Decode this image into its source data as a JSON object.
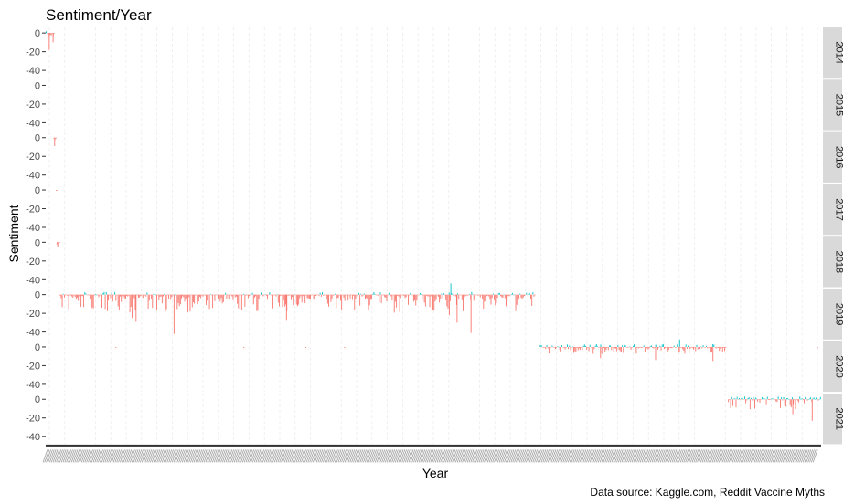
{
  "chart_data": {
    "type": "bar",
    "title": "Sentiment/Year",
    "xlabel": "Year",
    "ylabel": "Sentiment",
    "caption": "Data source: Kaggle.com, Reddit Vaccine Myths",
    "facet_by": "year",
    "ylim": [
      -48,
      6
    ],
    "y_ticks": [
      0,
      -20,
      -40
    ],
    "x_tick_labels_legible": false,
    "grid": "vertical dashed minor gridlines, no horizontal gridlines",
    "legend": "none",
    "colors": {
      "negative": "#f8766d",
      "positive": "#00bfc4",
      "strip": "#d9d9d9",
      "xaxis_ticks": "#333333"
    },
    "panels": [
      {
        "label": "2014",
        "segments": [
          {
            "x_start": 0.0,
            "x_end": 0.012,
            "min": -18,
            "max": 2,
            "positive_share": 0.1
          }
        ],
        "notable_values": [
          {
            "x": 0.004,
            "value": -18
          },
          {
            "x": 0.009,
            "value": -10
          }
        ]
      },
      {
        "label": "2015",
        "segments": [],
        "notable_values": []
      },
      {
        "label": "2016",
        "segments": [
          {
            "x_start": 0.01,
            "x_end": 0.014,
            "min": -9,
            "max": 0,
            "positive_share": 0
          }
        ],
        "notable_values": [
          {
            "x": 0.011,
            "value": -9
          }
        ]
      },
      {
        "label": "2017",
        "segments": [
          {
            "x_start": 0.013,
            "x_end": 0.015,
            "min": -2,
            "max": 1,
            "positive_share": 0
          }
        ],
        "notable_values": []
      },
      {
        "label": "2018",
        "segments": [
          {
            "x_start": 0.014,
            "x_end": 0.019,
            "min": -5,
            "max": 0,
            "positive_share": 0
          }
        ],
        "notable_values": [
          {
            "x": 0.015,
            "value": -5
          }
        ]
      },
      {
        "label": "2019",
        "segments": [
          {
            "x_start": 0.018,
            "x_end": 0.632,
            "min": -42,
            "max": 12,
            "positive_share": 0.12
          }
        ],
        "notable_values": [
          {
            "x": 0.045,
            "value": -13
          },
          {
            "x": 0.111,
            "value": -25
          },
          {
            "x": 0.116,
            "value": -29
          },
          {
            "x": 0.165,
            "value": -42
          },
          {
            "x": 0.31,
            "value": -28
          },
          {
            "x": 0.522,
            "value": 12
          },
          {
            "x": 0.53,
            "value": -30
          },
          {
            "x": 0.548,
            "value": -41
          },
          {
            "x": 0.52,
            "value": -22
          }
        ]
      },
      {
        "label": "2020",
        "segments": [
          {
            "x_start": 0.636,
            "x_end": 0.878,
            "min": -16,
            "max": 8,
            "positive_share": 0.35
          }
        ],
        "notable_values": [
          {
            "x": 0.715,
            "value": -12
          },
          {
            "x": 0.786,
            "value": -14
          },
          {
            "x": 0.817,
            "value": 8
          },
          {
            "x": 0.86,
            "value": -15
          }
        ],
        "outliers": [
          {
            "x": 0.09,
            "value": -1
          },
          {
            "x": 0.255,
            "value": -1
          },
          {
            "x": 0.335,
            "value": -1
          },
          {
            "x": 0.385,
            "value": -1
          },
          {
            "x": 0.995,
            "value": -1
          }
        ]
      },
      {
        "label": "2021",
        "segments": [
          {
            "x_start": 0.88,
            "x_end": 1.0,
            "min": -23,
            "max": 4,
            "positive_share": 0.4
          }
        ],
        "notable_values": [
          {
            "x": 0.914,
            "value": -10
          },
          {
            "x": 0.963,
            "value": -16
          },
          {
            "x": 0.988,
            "value": -23
          }
        ]
      }
    ]
  }
}
